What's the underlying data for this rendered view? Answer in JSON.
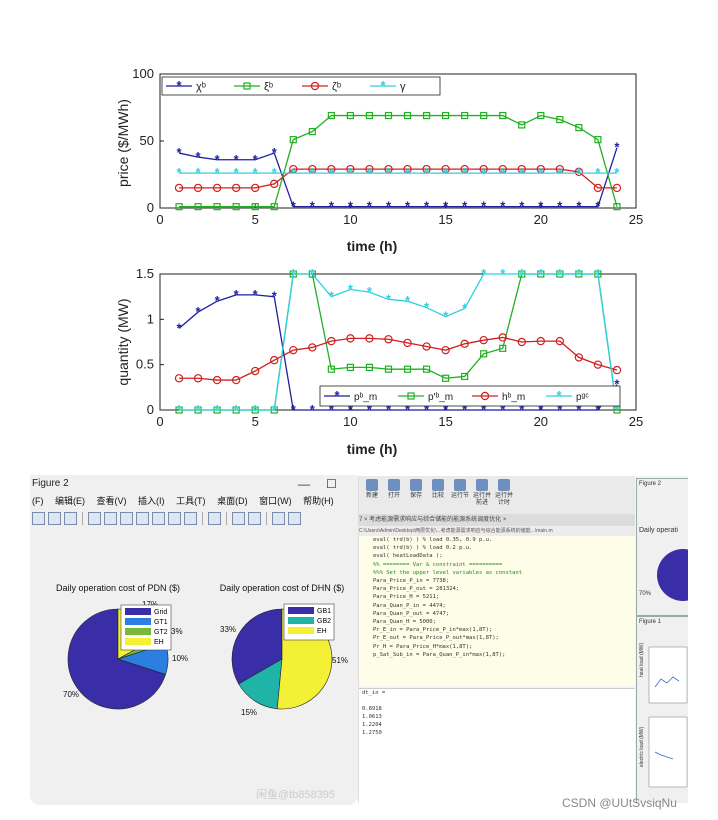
{
  "top_charts": {
    "price_chart": {
      "ylabel": "price ($/MWh)",
      "xlabel": "time (h)",
      "yticks": [
        "0",
        "50",
        "100"
      ],
      "xticks": [
        "0",
        "5",
        "10",
        "15",
        "20",
        "25"
      ],
      "legend": [
        "χᵇ",
        "ξᵇ",
        "ζᵇ",
        "γ"
      ]
    },
    "quantity_chart": {
      "ylabel": "quantity (MW)",
      "xlabel": "time (h)",
      "yticks": [
        "0",
        "0.5",
        "1",
        "1.5"
      ],
      "xticks": [
        "0",
        "5",
        "10",
        "15",
        "20",
        "25"
      ],
      "legend": [
        "pᵇ_m",
        "p'ᵇ_m",
        "hᵇ_m",
        "pᵍᶜ"
      ]
    }
  },
  "chart_data": [
    {
      "type": "line",
      "xlabel": "time (h)",
      "ylabel": "price ($/MWh)",
      "xlim": [
        0,
        25
      ],
      "ylim": [
        0,
        100
      ],
      "x": [
        1,
        2,
        3,
        4,
        5,
        6,
        7,
        8,
        9,
        10,
        11,
        12,
        13,
        14,
        15,
        16,
        17,
        18,
        19,
        20,
        21,
        22,
        23,
        24
      ],
      "series": [
        {
          "name": "χᵇ",
          "color": "#1f1fa0",
          "marker": "star",
          "values": [
            41,
            38,
            36,
            36,
            36,
            41,
            1,
            1,
            1,
            1,
            1,
            1,
            1,
            1,
            1,
            1,
            1,
            1,
            1,
            1,
            1,
            1,
            1,
            45
          ]
        },
        {
          "name": "ξᵇ",
          "color": "#22b022",
          "marker": "square",
          "values": [
            1,
            1,
            1,
            1,
            1,
            1,
            51,
            57,
            69,
            69,
            69,
            69,
            69,
            69,
            69,
            69,
            69,
            69,
            62,
            69,
            66,
            60,
            51,
            1
          ]
        },
        {
          "name": "ζᵇ",
          "color": "#d02020",
          "marker": "circle",
          "values": [
            15,
            15,
            15,
            15,
            15,
            18,
            29,
            29,
            29,
            29,
            29,
            29,
            29,
            29,
            29,
            29,
            29,
            29,
            29,
            29,
            29,
            27,
            15,
            15
          ]
        },
        {
          "name": "γ",
          "color": "#30d0e0",
          "marker": "star",
          "values": [
            26,
            26,
            26,
            26,
            26,
            26,
            26,
            26,
            26,
            26,
            26,
            26,
            26,
            26,
            26,
            26,
            26,
            26,
            26,
            26,
            26,
            26,
            26,
            26
          ]
        }
      ]
    },
    {
      "type": "line",
      "xlabel": "time (h)",
      "ylabel": "quantity (MW)",
      "xlim": [
        0,
        25
      ],
      "ylim": [
        0,
        1.5
      ],
      "x": [
        1,
        2,
        3,
        4,
        5,
        6,
        7,
        8,
        9,
        10,
        11,
        12,
        13,
        14,
        15,
        16,
        17,
        18,
        19,
        20,
        21,
        22,
        23,
        24
      ],
      "series": [
        {
          "name": "pᵇ_m",
          "color": "#1f1fa0",
          "marker": "star",
          "values": [
            0.9,
            1.08,
            1.2,
            1.27,
            1.27,
            1.25,
            0,
            0,
            0,
            0,
            0,
            0,
            0,
            0,
            0,
            0,
            0,
            0,
            0,
            0,
            0,
            0,
            0,
            0.28
          ]
        },
        {
          "name": "p'ᵇ_m",
          "color": "#22b022",
          "marker": "square",
          "values": [
            0,
            0,
            0,
            0,
            0,
            0,
            1.5,
            1.5,
            0.45,
            0.47,
            0.47,
            0.45,
            0.45,
            0.45,
            0.35,
            0.37,
            0.62,
            0.68,
            1.5,
            1.5,
            1.5,
            1.5,
            1.5,
            0
          ]
        },
        {
          "name": "hᵇ_m",
          "color": "#d02020",
          "marker": "circle",
          "values": [
            0.35,
            0.35,
            0.33,
            0.33,
            0.43,
            0.55,
            0.66,
            0.69,
            0.76,
            0.79,
            0.79,
            0.78,
            0.74,
            0.7,
            0.66,
            0.73,
            0.77,
            0.8,
            0.75,
            0.76,
            0.76,
            0.58,
            0.5,
            0.44
          ]
        },
        {
          "name": "pᵍᶜ",
          "color": "#30d0e0",
          "marker": "star",
          "values": [
            0,
            0,
            0,
            0,
            0,
            0,
            1.5,
            1.5,
            1.25,
            1.33,
            1.3,
            1.22,
            1.2,
            1.13,
            1.03,
            1.12,
            1.5,
            1.5,
            1.5,
            1.5,
            1.5,
            1.5,
            1.5,
            0
          ]
        }
      ]
    },
    {
      "type": "pie",
      "title": "Daily operation cost of PDN ($)",
      "labels": [
        "Grid",
        "GT1",
        "GT2",
        "EH"
      ],
      "values": [
        70,
        10,
        3,
        17
      ],
      "colors": [
        "#3a2ea8",
        "#2a7fe0",
        "#7ab83a",
        "#f4f036"
      ]
    },
    {
      "type": "pie",
      "title": "Daily operation cost of DHN ($)",
      "labels": [
        "GB1",
        "GB2",
        "EH"
      ],
      "values": [
        33,
        15,
        51
      ],
      "colors": [
        "#3a2ea8",
        "#20b4a8",
        "#f4f036"
      ]
    }
  ],
  "figure2_window": {
    "title": "Figure 2",
    "min_glyph": "—",
    "max_glyph": "☐",
    "menu": [
      "(F)",
      "编辑(E)",
      "查看(V)",
      "插入(I)",
      "工具(T)",
      "桌面(D)",
      "窗口(W)",
      "帮助(H)"
    ],
    "pdn": {
      "title": "Daily operation cost of PDN ($)",
      "labels_on_slices": [
        "70%",
        "10%",
        "3%",
        "17%"
      ],
      "legend": [
        "Grid",
        "GT1",
        "GT2",
        "EH"
      ]
    },
    "dhn": {
      "title": "Daily operation cost of DHN ($)",
      "labels_on_slices": [
        "33%",
        "51%",
        "15%"
      ],
      "legend": [
        "GB1",
        "GB2",
        "EH"
      ]
    }
  },
  "ide": {
    "ribbon": [
      "新建",
      "打开",
      "保存",
      "比较",
      "运行节",
      "运行并前进",
      "运行并计时"
    ],
    "tabs": "7   ×  考虑能源需求响应与综合储能的能源系统调度优化  ×",
    "path": "C:\\Users\\Admin\\Desktop\\两层优化\\...考虑能源需求响应与综合能源系统的储能...\\main.m",
    "code_lines": [
      "eval( trd(b) ) % load 0.35, 0.9 p.u.",
      "eval( trd(b) ) % load 0.2 p.u.",
      "eval( heatLoadData );",
      "",
      "%% ======== Var & constraint ==========",
      "%%% Set the upper level variables as constant",
      "Para_Price_P_in  = 7738;",
      "Para_Price_P_out = 281324;",
      "Para_Price_H     = 5211;",
      "Para_Quan_P_in  = 4474;",
      "Para_Quan_P_out = 4747;",
      "Para_Quan_H     = 5000;",
      "",
      "Pr_E_in  = Para_Price_P_in*max(1,8T);",
      "Pr_E_out = Para_Price_P_out*max(1,8T);",
      "Pr_H     = Para_Price_H*max(1,8T);",
      "p_Sat_Sub_in = Para_Quan_P_in*max(1,8T);"
    ],
    "cmd_lines": [
      "dt_in =",
      "",
      "  0.8918",
      "  1.0613",
      "  1.2204",
      "  1.2750"
    ],
    "side_fig_title": "Figure 2",
    "side_fig_text": "Daily operati",
    "side_fig_pct": "70%",
    "side_fig1_title": "Figure 1",
    "side_fig1_ylabel1": "heat load (MW)",
    "side_fig1_ylabel2": "electric load (MW)"
  },
  "watermark": "闲鱼@tb858395",
  "credit": "CSDN @UUtSvsiqNu"
}
